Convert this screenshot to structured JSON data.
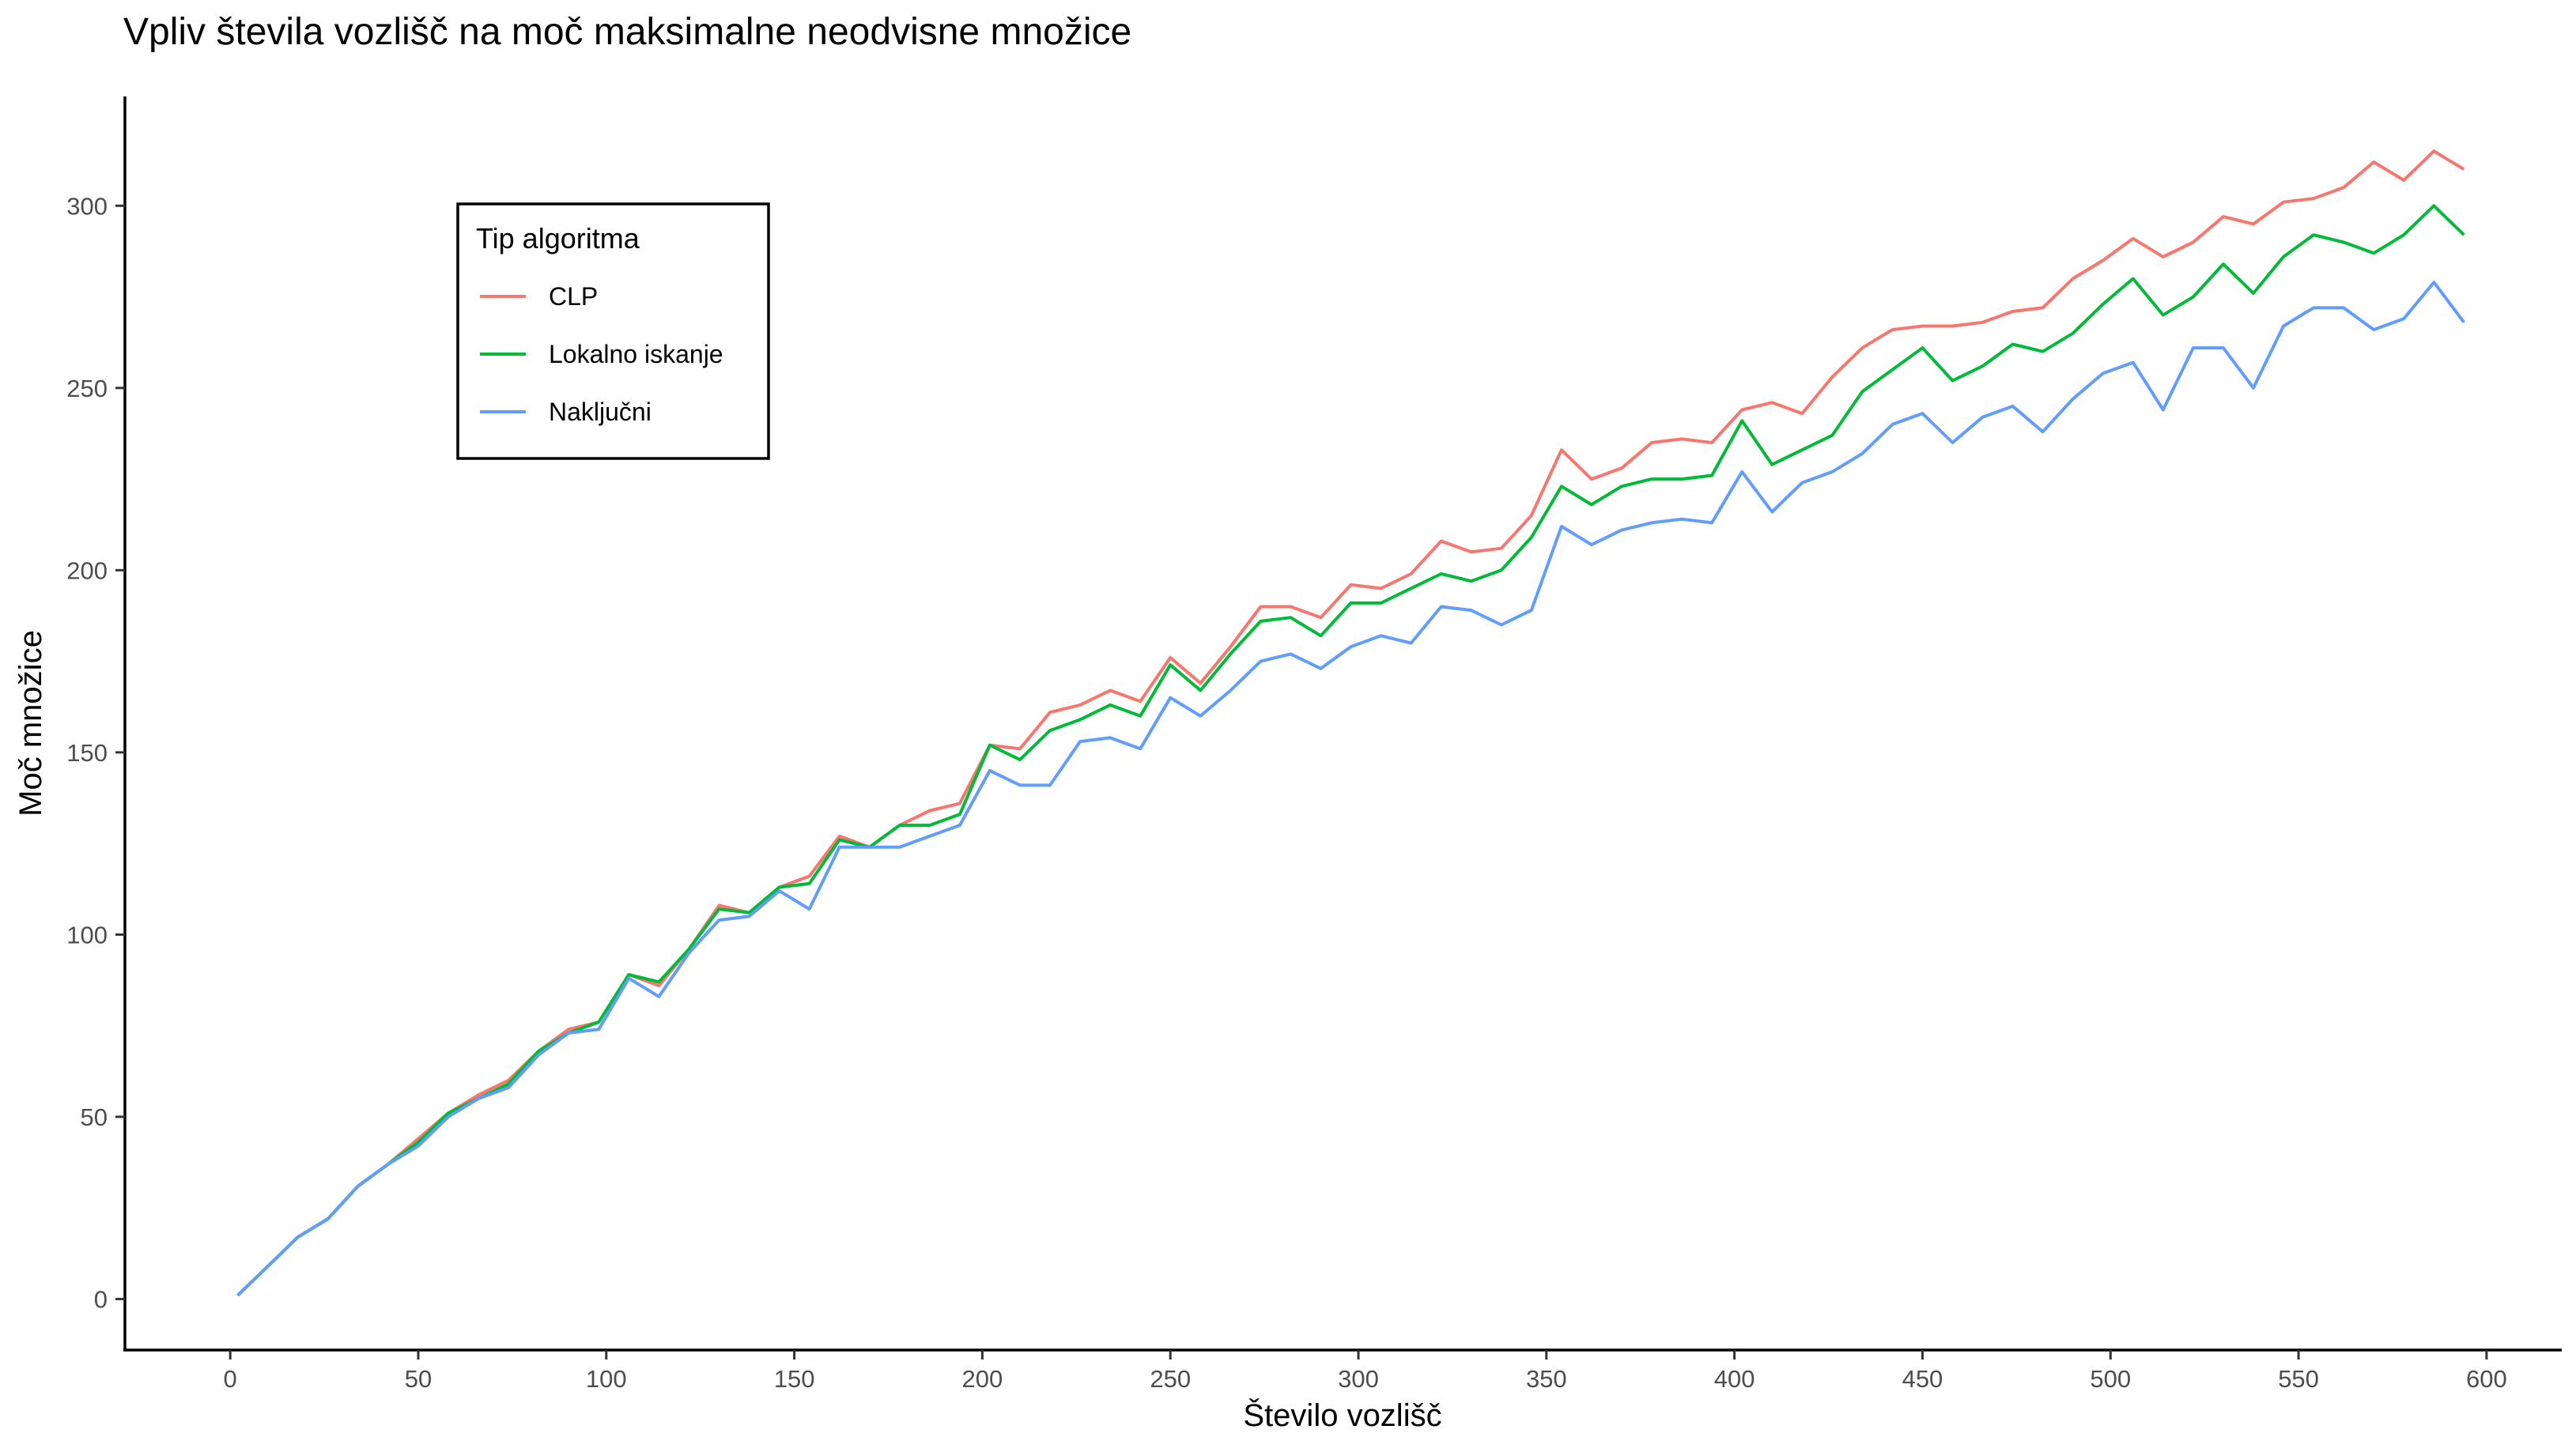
{
  "chart_data": {
    "type": "line",
    "title": "Vpliv števila vozlišč na moč maksimalne neodvisne množice",
    "xlabel": "Število vozlišč",
    "ylabel": "Moč množice",
    "xlim": [
      -28,
      620
    ],
    "ylim": [
      -14,
      330
    ],
    "x_ticks": [
      "0",
      "50",
      "100",
      "150",
      "200",
      "250",
      "300",
      "350",
      "400",
      "450",
      "500",
      "550",
      "600"
    ],
    "y_ticks": [
      "0",
      "50",
      "100",
      "150",
      "200",
      "250",
      "300"
    ],
    "grid": false,
    "legend": {
      "title": "Tip algoritma",
      "position": "top-left-inside"
    },
    "x": [
      2,
      10,
      18,
      26,
      34,
      42,
      50,
      58,
      66,
      74,
      82,
      90,
      98,
      106,
      114,
      122,
      130,
      138,
      146,
      154,
      162,
      170,
      178,
      186,
      194,
      202,
      210,
      218,
      226,
      234,
      242,
      250,
      258,
      266,
      274,
      282,
      290,
      298,
      306,
      314,
      322,
      330,
      338,
      346,
      354,
      362,
      370,
      378,
      386,
      394,
      402,
      410,
      418,
      426,
      434,
      442,
      450,
      458,
      466,
      474,
      482,
      490,
      498,
      506,
      514,
      522,
      530,
      538,
      546,
      554,
      562,
      570,
      578,
      586,
      594
    ],
    "series": [
      {
        "name": "CLP",
        "color": "#F8766D",
        "values": [
          1,
          9,
          17,
          22,
          31,
          37,
          44,
          51,
          56,
          60,
          68,
          74,
          76,
          89,
          86,
          96,
          108,
          106,
          113,
          116,
          127,
          124,
          130,
          134,
          136,
          152,
          151,
          161,
          163,
          167,
          164,
          176,
          169,
          179,
          190,
          190,
          187,
          196,
          195,
          199,
          208,
          205,
          206,
          215,
          233,
          225,
          228,
          235,
          236,
          235,
          244,
          246,
          243,
          253,
          261,
          266,
          267,
          267,
          268,
          271,
          272,
          280,
          285,
          291,
          286,
          290,
          297,
          295,
          301,
          302,
          305,
          312,
          307,
          315,
          310
        ]
      },
      {
        "name": "Lokalno iskanje",
        "color": "#00BA38",
        "values": [
          1,
          9,
          17,
          22,
          31,
          37,
          43,
          51,
          55,
          59,
          68,
          73,
          76,
          89,
          87,
          96,
          107,
          106,
          113,
          114,
          126,
          124,
          130,
          130,
          133,
          152,
          148,
          156,
          159,
          163,
          160,
          174,
          167,
          177,
          186,
          187,
          182,
          191,
          191,
          195,
          199,
          197,
          200,
          209,
          223,
          218,
          223,
          225,
          225,
          226,
          241,
          229,
          233,
          237,
          249,
          255,
          261,
          252,
          256,
          262,
          260,
          265,
          273,
          280,
          270,
          275,
          284,
          276,
          286,
          292,
          290,
          287,
          292,
          300,
          292
        ]
      },
      {
        "name": "Naključni",
        "color": "#619CFF",
        "values": [
          1,
          9,
          17,
          22,
          31,
          37,
          42,
          50,
          55,
          58,
          67,
          73,
          74,
          88,
          83,
          95,
          104,
          105,
          112,
          107,
          124,
          124,
          124,
          127,
          130,
          145,
          141,
          141,
          153,
          154,
          151,
          165,
          160,
          167,
          175,
          177,
          173,
          179,
          182,
          180,
          190,
          189,
          185,
          189,
          212,
          207,
          211,
          213,
          214,
          213,
          227,
          216,
          224,
          227,
          232,
          240,
          243,
          235,
          242,
          245,
          238,
          247,
          254,
          257,
          244,
          261,
          261,
          250,
          267,
          272,
          272,
          266,
          269,
          279,
          268
        ]
      }
    ]
  }
}
